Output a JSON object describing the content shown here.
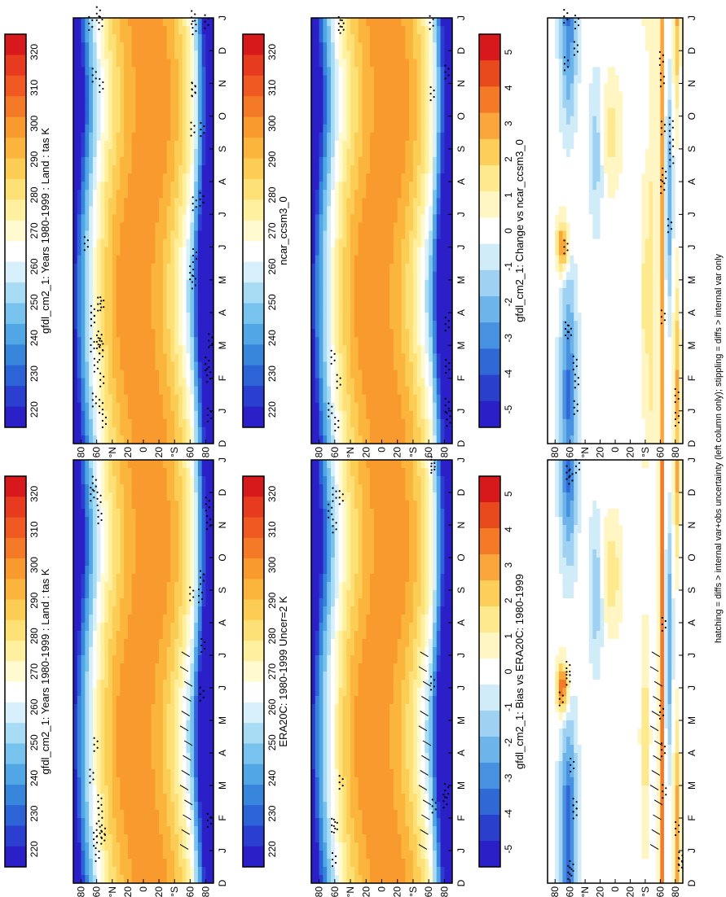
{
  "footnote": "hatching = diffs > internal var+obs uncertainty (left column only); stippling = diffs > internal var only",
  "panels": [
    {
      "title": "gfdl_cm2_1: Years 1980-1999 : Land : tas K",
      "kind": "abs",
      "hatch": true
    },
    {
      "title": "ERA20C: 1980-1999 Uncer=2 K",
      "kind": "abs",
      "hatch": true
    },
    {
      "title": "gfdl_cm2_1: Bias vs ERA20C: 1980-1999",
      "kind": "diff",
      "hatch": true
    },
    {
      "title": "gfdl_cm2_1: Years 1980-1999 : Land : tas K",
      "kind": "abs",
      "hatch": false
    },
    {
      "title": "ncar_ccsm3_0",
      "kind": "abs",
      "hatch": false
    },
    {
      "title": "gfdl_cm2_1: Change vs ncar_ccsm3_0",
      "kind": "diff",
      "hatch": false
    }
  ],
  "colors": {
    "abs": [
      "#d7191c",
      "#e63b1e",
      "#f05a22",
      "#f57a27",
      "#f99a2e",
      "#fbb53c",
      "#fccd55",
      "#fde176",
      "#fef09e",
      "#fffacf",
      "#ffffff",
      "#d7f0fb",
      "#a8dcf5",
      "#78c3ee",
      "#51a6e5",
      "#3786dc",
      "#2c63d6",
      "#2a3fd0",
      "#2b1fc8"
    ],
    "diff": [
      "#d7191c",
      "#e84a1e",
      "#f57a27",
      "#fba63a",
      "#fdcf5a",
      "#fee98e",
      "#fff6c4",
      "#ffffff",
      "#d0ecf9",
      "#9fd2f2",
      "#6cb4ea",
      "#4890e0",
      "#3068d6",
      "#2a40cc",
      "#2b1fc8"
    ]
  },
  "chart_data": [
    {
      "type": "heatmap",
      "title": "gfdl_cm2_1: Years 1980-1999 : Land : tas K",
      "x_ticks": [
        "D",
        "J",
        "F",
        "M",
        "A",
        "M",
        "J",
        "J",
        "A",
        "S",
        "O",
        "N",
        "D",
        "J"
      ],
      "y_ticks": [
        "80",
        "60",
        "°N",
        "20",
        "0",
        "20",
        "°S",
        "60",
        "80"
      ],
      "colorbar_labels": [
        "320",
        "310",
        "300",
        "290",
        "280",
        "270",
        "260",
        "250",
        "240",
        "230",
        "220"
      ],
      "zlim": [
        215,
        325
      ],
      "units": "K"
    },
    {
      "type": "heatmap",
      "title": "ERA20C: 1980-1999 Uncer=2 K",
      "x_ticks": [
        "D",
        "J",
        "F",
        "M",
        "A",
        "M",
        "J",
        "J",
        "A",
        "S",
        "O",
        "N",
        "D",
        "J"
      ],
      "y_ticks": [
        "80",
        "60",
        "°N",
        "20",
        "0",
        "20",
        "°S",
        "60",
        "80"
      ],
      "colorbar_labels": [
        "320",
        "310",
        "300",
        "290",
        "280",
        "270",
        "260",
        "250",
        "240",
        "230",
        "220"
      ],
      "zlim": [
        215,
        325
      ],
      "units": "K"
    },
    {
      "type": "heatmap",
      "title": "gfdl_cm2_1: Bias vs ERA20C: 1980-1999",
      "x_ticks": [
        "D",
        "J",
        "F",
        "M",
        "A",
        "M",
        "J",
        "J",
        "A",
        "S",
        "O",
        "N",
        "D",
        "J"
      ],
      "y_ticks": [
        "80",
        "60",
        "°N",
        "20",
        "0",
        "20",
        "°S",
        "60",
        "80"
      ],
      "colorbar_labels": [
        "5",
        "4",
        "3",
        "2",
        "1",
        "0",
        "-1",
        "-2",
        "-3",
        "-4",
        "-5"
      ],
      "zlim": [
        -5.5,
        5.5
      ]
    },
    {
      "type": "heatmap",
      "title": "gfdl_cm2_1: Years 1980-1999 : Land : tas K",
      "x_ticks": [
        "D",
        "J",
        "F",
        "M",
        "A",
        "M",
        "J",
        "J",
        "A",
        "S",
        "O",
        "N",
        "D",
        "J"
      ],
      "y_ticks": [
        "80",
        "60",
        "°N",
        "20",
        "0",
        "20",
        "°S",
        "60",
        "80"
      ],
      "colorbar_labels": [
        "320",
        "310",
        "300",
        "290",
        "280",
        "270",
        "260",
        "250",
        "240",
        "230",
        "220"
      ],
      "zlim": [
        215,
        325
      ],
      "units": "K"
    },
    {
      "type": "heatmap",
      "title": "ncar_ccsm3_0",
      "x_ticks": [
        "D",
        "J",
        "F",
        "M",
        "A",
        "M",
        "J",
        "J",
        "A",
        "S",
        "O",
        "N",
        "D",
        "J"
      ],
      "y_ticks": [
        "80",
        "60",
        "°N",
        "20",
        "0",
        "20",
        "°S",
        "60",
        "80"
      ],
      "colorbar_labels": [
        "320",
        "310",
        "300",
        "290",
        "280",
        "270",
        "260",
        "250",
        "240",
        "230",
        "220"
      ],
      "zlim": [
        215,
        325
      ],
      "units": "K"
    },
    {
      "type": "heatmap",
      "title": "gfdl_cm2_1: Change vs ncar_ccsm3_0",
      "x_ticks": [
        "D",
        "J",
        "F",
        "M",
        "A",
        "M",
        "J",
        "J",
        "A",
        "S",
        "O",
        "N",
        "D",
        "J"
      ],
      "y_ticks": [
        "80",
        "60",
        "°N",
        "20",
        "0",
        "20",
        "°S",
        "60",
        "80"
      ],
      "colorbar_labels": [
        "5",
        "4",
        "3",
        "2",
        "1",
        "0",
        "-1",
        "-2",
        "-3",
        "-4",
        "-5"
      ],
      "zlim": [
        -5.5,
        5.5
      ]
    }
  ]
}
